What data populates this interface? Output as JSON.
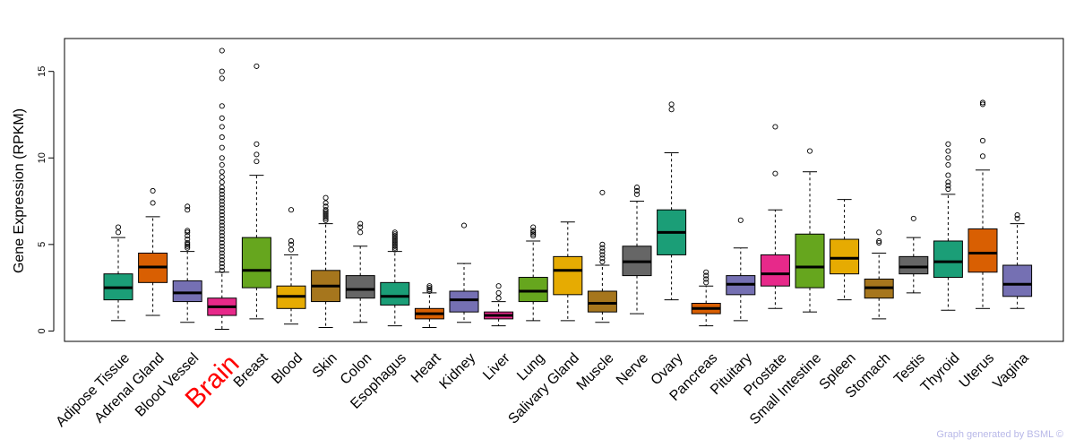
{
  "chart_data": {
    "type": "boxplot",
    "ylabel": "Gene Expression (RPKM)",
    "xlabel": "",
    "ylim": [
      -0.6,
      16.9
    ],
    "yticks": [
      0,
      5,
      10,
      15
    ],
    "highlight": "Brain",
    "highlight_color": "#FF0000",
    "credit": "Graph generated by BSML ©",
    "credit_color": "#B8B8E8",
    "series": [
      {
        "name": "Adipose Tissue",
        "color": "#1B9E77",
        "whisker_low": 0.6,
        "q1": 1.8,
        "median": 2.5,
        "q3": 3.3,
        "whisker_high": 5.4,
        "outliers": [
          5.7,
          6.0
        ]
      },
      {
        "name": "Adrenal Gland",
        "color": "#D95F02",
        "whisker_low": 0.9,
        "q1": 2.8,
        "median": 3.7,
        "q3": 4.5,
        "whisker_high": 6.6,
        "outliers": [
          7.4,
          8.1
        ]
      },
      {
        "name": "Blood Vessel",
        "color": "#7570B3",
        "whisker_low": 0.5,
        "q1": 1.7,
        "median": 2.2,
        "q3": 2.9,
        "whisker_high": 4.6,
        "outliers": [
          4.8,
          4.9,
          5.0,
          5.1,
          5.3,
          5.5,
          5.7,
          5.8,
          7.0,
          7.2
        ]
      },
      {
        "name": "Brain",
        "color": "#E7298A",
        "whisker_low": 0.1,
        "q1": 0.9,
        "median": 1.4,
        "q3": 1.9,
        "whisker_high": 3.4,
        "outliers": [
          3.5,
          3.7,
          3.9,
          4.1,
          4.3,
          4.5,
          4.7,
          4.9,
          5.1,
          5.3,
          5.5,
          5.7,
          5.9,
          6.1,
          6.3,
          6.5,
          6.7,
          6.9,
          7.1,
          7.3,
          7.5,
          7.7,
          7.9,
          8.1,
          8.3,
          8.6,
          8.9,
          9.2,
          9.6,
          10.0,
          10.6,
          11.2,
          11.8,
          12.3,
          13.0,
          14.6,
          15.0,
          16.2
        ]
      },
      {
        "name": "Breast",
        "color": "#66A61E",
        "whisker_low": 0.7,
        "q1": 2.5,
        "median": 3.5,
        "q3": 5.4,
        "whisker_high": 9.0,
        "outliers": [
          9.8,
          10.2,
          10.8,
          15.3
        ]
      },
      {
        "name": "Blood",
        "color": "#E6AB02",
        "whisker_low": 0.4,
        "q1": 1.3,
        "median": 2.0,
        "q3": 2.6,
        "whisker_high": 4.4,
        "outliers": [
          4.7,
          5.0,
          5.2,
          7.0
        ]
      },
      {
        "name": "Skin",
        "color": "#A6761D",
        "whisker_low": 0.2,
        "q1": 1.7,
        "median": 2.6,
        "q3": 3.5,
        "whisker_high": 6.2,
        "outliers": [
          6.4,
          6.5,
          6.6,
          6.7,
          6.8,
          6.9,
          7.0,
          7.2,
          7.4,
          7.7
        ]
      },
      {
        "name": "Colon",
        "color": "#666666",
        "whisker_low": 0.5,
        "q1": 1.9,
        "median": 2.4,
        "q3": 3.2,
        "whisker_high": 4.9,
        "outliers": [
          5.7,
          6.0,
          6.2
        ]
      },
      {
        "name": "Esophagus",
        "color": "#1B9E77",
        "whisker_low": 0.3,
        "q1": 1.5,
        "median": 2.0,
        "q3": 2.8,
        "whisker_high": 4.6,
        "outliers": [
          4.7,
          4.8,
          4.9,
          5.0,
          5.1,
          5.2,
          5.3,
          5.4,
          5.5,
          5.6,
          5.7
        ]
      },
      {
        "name": "Heart",
        "color": "#D95F02",
        "whisker_low": 0.2,
        "q1": 0.7,
        "median": 1.0,
        "q3": 1.3,
        "whisker_high": 2.2,
        "outliers": [
          2.3,
          2.4,
          2.5,
          2.6
        ]
      },
      {
        "name": "Kidney",
        "color": "#7570B3",
        "whisker_low": 0.5,
        "q1": 1.1,
        "median": 1.8,
        "q3": 2.3,
        "whisker_high": 3.9,
        "outliers": [
          6.1
        ]
      },
      {
        "name": "Liver",
        "color": "#E7298A",
        "whisker_low": 0.3,
        "q1": 0.7,
        "median": 0.9,
        "q3": 1.1,
        "whisker_high": 1.7,
        "outliers": [
          1.9,
          2.2,
          2.6
        ]
      },
      {
        "name": "Lung",
        "color": "#66A61E",
        "whisker_low": 0.6,
        "q1": 1.7,
        "median": 2.3,
        "q3": 3.1,
        "whisker_high": 5.2,
        "outliers": [
          5.5,
          5.6,
          5.7,
          5.8,
          6.0
        ]
      },
      {
        "name": "Salivary Gland",
        "color": "#E6AB02",
        "whisker_low": 0.6,
        "q1": 2.1,
        "median": 3.5,
        "q3": 4.3,
        "whisker_high": 6.3,
        "outliers": []
      },
      {
        "name": "Muscle",
        "color": "#A6761D",
        "whisker_low": 0.5,
        "q1": 1.1,
        "median": 1.6,
        "q3": 2.3,
        "whisker_high": 3.8,
        "outliers": [
          4.0,
          4.2,
          4.4,
          4.6,
          4.8,
          5.0,
          8.0
        ]
      },
      {
        "name": "Nerve",
        "color": "#666666",
        "whisker_low": 1.0,
        "q1": 3.2,
        "median": 4.0,
        "q3": 4.9,
        "whisker_high": 7.5,
        "outliers": [
          7.9,
          8.1,
          8.3
        ]
      },
      {
        "name": "Ovary",
        "color": "#1B9E77",
        "whisker_low": 1.8,
        "q1": 4.4,
        "median": 5.7,
        "q3": 7.0,
        "whisker_high": 10.3,
        "outliers": [
          12.8,
          13.1
        ]
      },
      {
        "name": "Pancreas",
        "color": "#D95F02",
        "whisker_low": 0.3,
        "q1": 1.0,
        "median": 1.3,
        "q3": 1.6,
        "whisker_high": 2.6,
        "outliers": [
          2.8,
          3.0,
          3.2,
          3.4
        ]
      },
      {
        "name": "Pituitary",
        "color": "#7570B3",
        "whisker_low": 0.6,
        "q1": 2.1,
        "median": 2.7,
        "q3": 3.2,
        "whisker_high": 4.8,
        "outliers": [
          6.4
        ]
      },
      {
        "name": "Prostate",
        "color": "#E7298A",
        "whisker_low": 1.3,
        "q1": 2.6,
        "median": 3.3,
        "q3": 4.4,
        "whisker_high": 7.0,
        "outliers": [
          9.1,
          11.8
        ]
      },
      {
        "name": "Small Intestine",
        "color": "#66A61E",
        "whisker_low": 1.1,
        "q1": 2.5,
        "median": 3.7,
        "q3": 5.6,
        "whisker_high": 9.2,
        "outliers": [
          10.4
        ]
      },
      {
        "name": "Spleen",
        "color": "#E6AB02",
        "whisker_low": 1.8,
        "q1": 3.3,
        "median": 4.2,
        "q3": 5.3,
        "whisker_high": 7.6,
        "outliers": []
      },
      {
        "name": "Stomach",
        "color": "#A6761D",
        "whisker_low": 0.7,
        "q1": 1.9,
        "median": 2.5,
        "q3": 3.0,
        "whisker_high": 4.5,
        "outliers": [
          5.1,
          5.2,
          5.7
        ]
      },
      {
        "name": "Testis",
        "color": "#666666",
        "whisker_low": 2.2,
        "q1": 3.3,
        "median": 3.7,
        "q3": 4.3,
        "whisker_high": 5.4,
        "outliers": [
          6.5
        ]
      },
      {
        "name": "Thyroid",
        "color": "#1B9E77",
        "whisker_low": 1.2,
        "q1": 3.1,
        "median": 4.0,
        "q3": 5.2,
        "whisker_high": 7.9,
        "outliers": [
          8.2,
          8.4,
          8.6,
          9.0,
          9.6,
          10.0,
          10.4,
          10.8
        ]
      },
      {
        "name": "Uterus",
        "color": "#D95F02",
        "whisker_low": 1.3,
        "q1": 3.4,
        "median": 4.5,
        "q3": 5.9,
        "whisker_high": 9.3,
        "outliers": [
          10.1,
          11.0,
          13.1,
          13.2
        ]
      },
      {
        "name": "Vagina",
        "color": "#7570B3",
        "whisker_low": 1.3,
        "q1": 2.0,
        "median": 2.7,
        "q3": 3.8,
        "whisker_high": 6.2,
        "outliers": [
          6.5,
          6.7
        ]
      }
    ]
  }
}
